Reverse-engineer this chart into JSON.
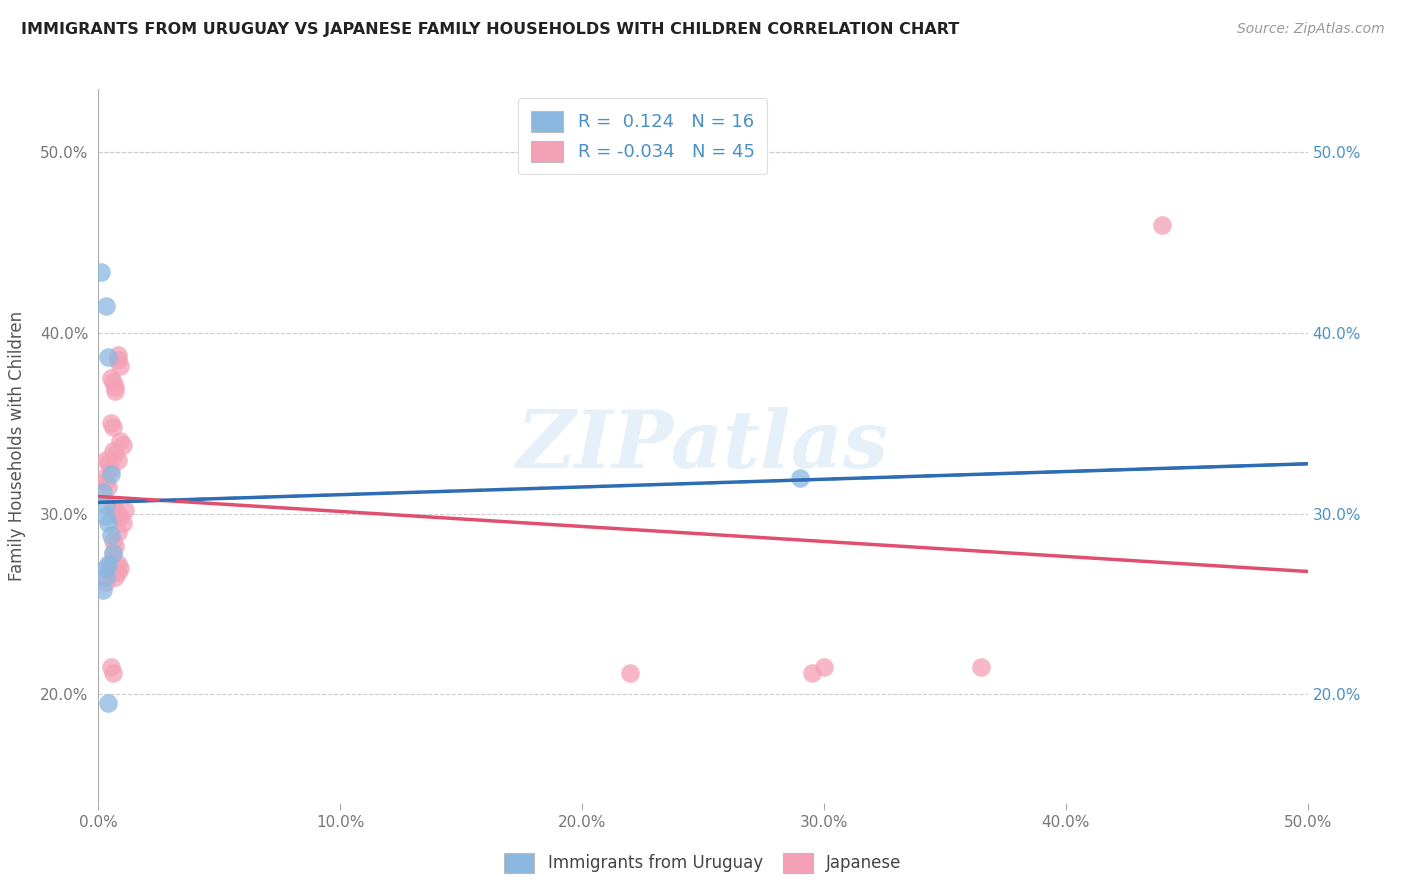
{
  "title": "IMMIGRANTS FROM URUGUAY VS JAPANESE FAMILY HOUSEHOLDS WITH CHILDREN CORRELATION CHART",
  "source": "Source: ZipAtlas.com",
  "ylabel": "Family Households with Children",
  "xlim": [
    0.0,
    0.5
  ],
  "ylim": [
    0.14,
    0.535
  ],
  "x_ticks": [
    0.0,
    0.1,
    0.2,
    0.3,
    0.4,
    0.5
  ],
  "x_tick_labels": [
    "0.0%",
    "10.0%",
    "20.0%",
    "30.0%",
    "40.0%",
    "50.0%"
  ],
  "y_ticks": [
    0.2,
    0.3,
    0.4,
    0.5
  ],
  "y_tick_labels": [
    "20.0%",
    "30.0%",
    "40.0%",
    "50.0%"
  ],
  "blue_color": "#8ab8e0",
  "pink_color": "#f4a0b5",
  "blue_line_color": "#2e6db4",
  "pink_line_color": "#e0506e",
  "text_color": "#4a90c4",
  "watermark": "ZIPatlas",
  "blue_scatter_x": [
    0.001,
    0.003,
    0.004,
    0.005,
    0.002,
    0.003,
    0.003,
    0.004,
    0.005,
    0.006,
    0.004,
    0.003,
    0.002,
    0.003,
    0.004,
    0.29
  ],
  "blue_scatter_y": [
    0.434,
    0.415,
    0.387,
    0.322,
    0.312,
    0.305,
    0.299,
    0.295,
    0.288,
    0.278,
    0.272,
    0.265,
    0.258,
    0.27,
    0.195,
    0.32
  ],
  "pink_scatter_x": [
    0.002,
    0.003,
    0.004,
    0.003,
    0.004,
    0.005,
    0.005,
    0.006,
    0.005,
    0.006,
    0.007,
    0.007,
    0.008,
    0.008,
    0.009,
    0.006,
    0.007,
    0.008,
    0.009,
    0.01,
    0.006,
    0.007,
    0.008,
    0.009,
    0.01,
    0.011,
    0.008,
    0.009,
    0.005,
    0.006,
    0.003,
    0.004,
    0.005,
    0.006,
    0.007,
    0.008,
    0.007,
    0.008,
    0.005,
    0.006,
    0.22,
    0.295,
    0.3,
    0.365,
    0.44
  ],
  "pink_scatter_y": [
    0.32,
    0.318,
    0.315,
    0.33,
    0.328,
    0.325,
    0.35,
    0.348,
    0.375,
    0.373,
    0.37,
    0.368,
    0.388,
    0.385,
    0.382,
    0.335,
    0.333,
    0.33,
    0.34,
    0.338,
    0.305,
    0.302,
    0.3,
    0.298,
    0.295,
    0.302,
    0.272,
    0.27,
    0.268,
    0.285,
    0.262,
    0.268,
    0.273,
    0.278,
    0.282,
    0.29,
    0.265,
    0.268,
    0.215,
    0.212,
    0.212,
    0.212,
    0.215,
    0.215,
    0.46
  ]
}
